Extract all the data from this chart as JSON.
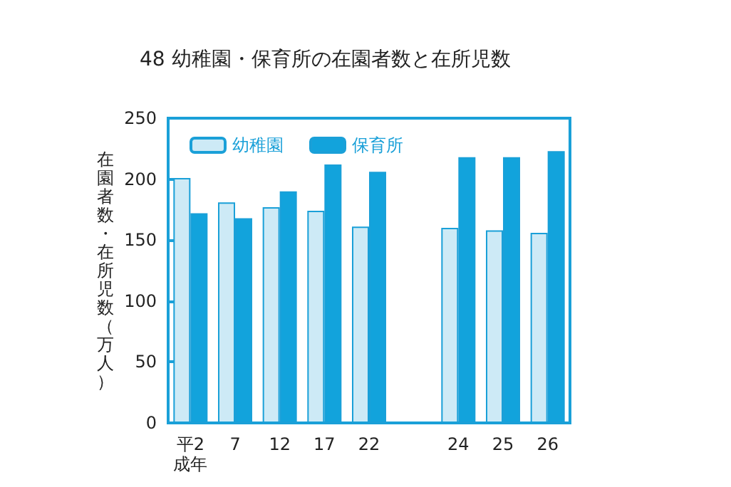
{
  "chart_data": {
    "type": "bar",
    "title": "48 幼稚園・保育所の在園者数と在所児数",
    "ylabel": "在園者数・在所児数（万人）",
    "categories": [
      "平2\n成年",
      "7",
      "12",
      "17",
      "22",
      null,
      "24",
      "25",
      "26"
    ],
    "series": [
      {
        "name": "幼稚園",
        "color": "#cdeaf6",
        "values": [
          201,
          181,
          177,
          174,
          161,
          null,
          160,
          158,
          156
        ]
      },
      {
        "name": "保育所",
        "color": "#12a3dc",
        "values": [
          172,
          168,
          190,
          212,
          206,
          null,
          218,
          218,
          223
        ]
      }
    ],
    "ylim": [
      0,
      250
    ],
    "yticks": [
      0,
      50,
      100,
      150,
      200,
      250
    ],
    "grid": false,
    "legend": "top left"
  }
}
